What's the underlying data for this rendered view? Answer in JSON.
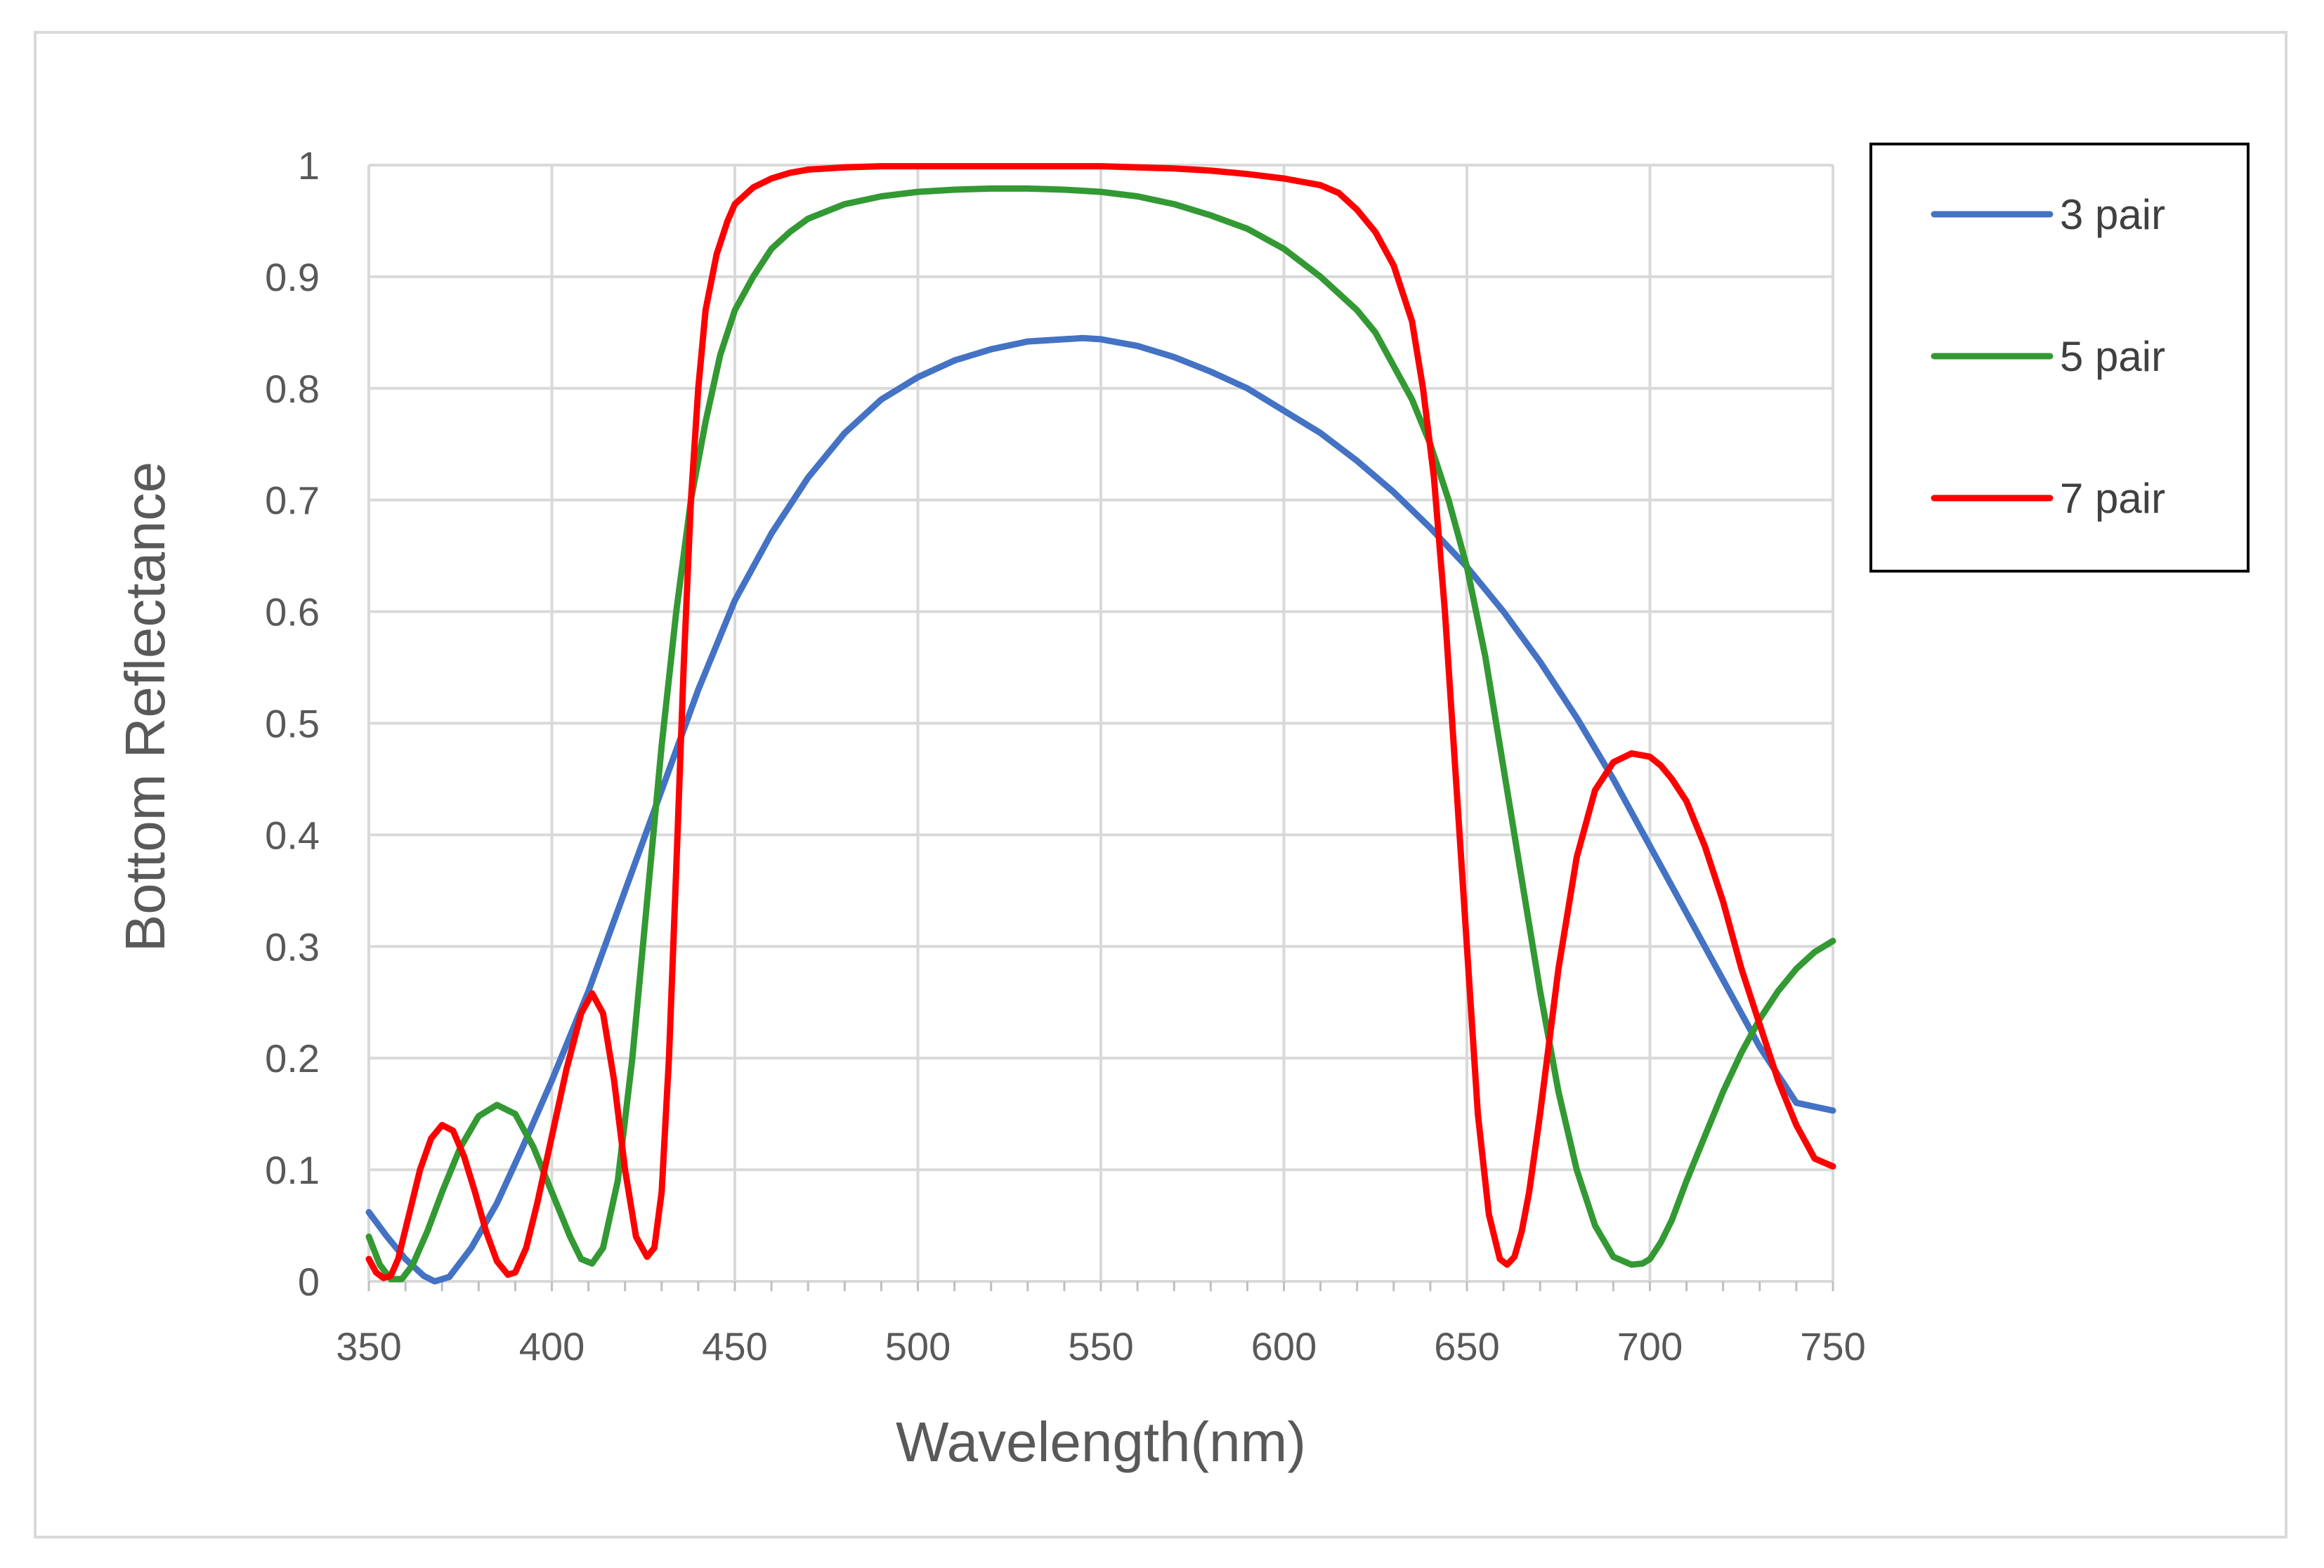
{
  "chart_data": {
    "type": "line",
    "title": "",
    "xlabel": "Wavelength(nm)",
    "ylabel": "Bottom Reflectance",
    "xlim": [
      350,
      750
    ],
    "ylim": [
      0,
      1
    ],
    "xticks": [
      "350",
      "400",
      "450",
      "500",
      "550",
      "600",
      "650",
      "700",
      "750"
    ],
    "yticks": [
      "0",
      "0.1",
      "0.2",
      "0.3",
      "0.4",
      "0.5",
      "0.6",
      "0.7",
      "0.8",
      "0.9",
      "1"
    ],
    "grid": true,
    "legend_position": "right",
    "series": [
      {
        "name": "3 pair",
        "color": "#4472c4",
        "x": [
          350,
          355,
          360,
          365,
          368,
          372,
          378,
          385,
          392,
          400,
          410,
          420,
          430,
          440,
          450,
          460,
          470,
          480,
          490,
          500,
          510,
          520,
          530,
          540,
          545,
          550,
          560,
          570,
          580,
          590,
          600,
          610,
          620,
          630,
          640,
          650,
          660,
          670,
          680,
          690,
          700,
          710,
          720,
          730,
          740,
          750
        ],
        "y": [
          0.062,
          0.04,
          0.02,
          0.005,
          0.0,
          0.004,
          0.03,
          0.07,
          0.12,
          0.18,
          0.26,
          0.35,
          0.44,
          0.53,
          0.61,
          0.67,
          0.72,
          0.76,
          0.79,
          0.81,
          0.825,
          0.835,
          0.842,
          0.844,
          0.845,
          0.844,
          0.838,
          0.828,
          0.815,
          0.8,
          0.78,
          0.76,
          0.735,
          0.707,
          0.675,
          0.64,
          0.6,
          0.555,
          0.505,
          0.45,
          0.39,
          0.33,
          0.27,
          0.21,
          0.16,
          0.153
        ]
      },
      {
        "name": "5 pair",
        "color": "#339933",
        "x": [
          350,
          353,
          356,
          359,
          362,
          366,
          370,
          375,
          380,
          385,
          390,
          395,
          400,
          405,
          408,
          411,
          414,
          418,
          422,
          426,
          430,
          434,
          438,
          442,
          446,
          450,
          455,
          460,
          465,
          470,
          480,
          490,
          500,
          510,
          520,
          530,
          540,
          550,
          560,
          570,
          580,
          590,
          600,
          610,
          620,
          625,
          630,
          635,
          640,
          645,
          650,
          655,
          660,
          665,
          670,
          675,
          680,
          685,
          690,
          695,
          698,
          700,
          703,
          706,
          710,
          715,
          720,
          725,
          730,
          735,
          740,
          745,
          750
        ],
        "y": [
          0.04,
          0.015,
          0.002,
          0.002,
          0.015,
          0.045,
          0.08,
          0.12,
          0.148,
          0.158,
          0.15,
          0.12,
          0.08,
          0.04,
          0.02,
          0.016,
          0.03,
          0.09,
          0.2,
          0.34,
          0.48,
          0.6,
          0.7,
          0.77,
          0.83,
          0.87,
          0.9,
          0.925,
          0.94,
          0.952,
          0.965,
          0.972,
          0.976,
          0.978,
          0.979,
          0.979,
          0.978,
          0.976,
          0.972,
          0.965,
          0.955,
          0.943,
          0.925,
          0.9,
          0.87,
          0.85,
          0.82,
          0.79,
          0.75,
          0.7,
          0.64,
          0.56,
          0.46,
          0.36,
          0.26,
          0.17,
          0.1,
          0.05,
          0.022,
          0.015,
          0.016,
          0.02,
          0.035,
          0.055,
          0.09,
          0.13,
          0.17,
          0.205,
          0.235,
          0.26,
          0.28,
          0.295,
          0.305
        ]
      },
      {
        "name": "7 pair",
        "color": "#ff0000",
        "x": [
          350,
          352,
          354,
          356,
          358,
          361,
          364,
          367,
          370,
          373,
          376,
          379,
          382,
          385,
          388,
          390,
          393,
          396,
          400,
          404,
          408,
          411,
          414,
          417,
          420,
          423,
          426,
          428,
          430,
          432,
          434,
          436,
          438,
          440,
          442,
          445,
          448,
          450,
          455,
          460,
          465,
          470,
          480,
          490,
          500,
          510,
          520,
          530,
          540,
          550,
          560,
          570,
          580,
          590,
          600,
          610,
          615,
          620,
          625,
          630,
          635,
          638,
          641,
          644,
          647,
          650,
          653,
          656,
          659,
          661,
          663,
          665,
          667,
          670,
          675,
          680,
          685,
          690,
          695,
          700,
          703,
          706,
          710,
          715,
          720,
          725,
          730,
          735,
          740,
          745,
          750
        ],
        "y": [
          0.02,
          0.008,
          0.003,
          0.005,
          0.02,
          0.06,
          0.1,
          0.128,
          0.14,
          0.135,
          0.112,
          0.08,
          0.045,
          0.018,
          0.006,
          0.008,
          0.03,
          0.07,
          0.13,
          0.19,
          0.24,
          0.258,
          0.24,
          0.18,
          0.1,
          0.04,
          0.022,
          0.03,
          0.08,
          0.2,
          0.37,
          0.55,
          0.7,
          0.8,
          0.87,
          0.92,
          0.95,
          0.965,
          0.98,
          0.988,
          0.993,
          0.996,
          0.998,
          0.999,
          0.999,
          0.999,
          0.999,
          0.999,
          0.999,
          0.999,
          0.998,
          0.997,
          0.995,
          0.992,
          0.988,
          0.982,
          0.975,
          0.96,
          0.94,
          0.91,
          0.86,
          0.8,
          0.72,
          0.6,
          0.45,
          0.3,
          0.15,
          0.06,
          0.02,
          0.015,
          0.022,
          0.045,
          0.08,
          0.15,
          0.28,
          0.38,
          0.44,
          0.465,
          0.473,
          0.47,
          0.462,
          0.45,
          0.43,
          0.39,
          0.34,
          0.28,
          0.23,
          0.18,
          0.14,
          0.11,
          0.103
        ]
      }
    ]
  }
}
